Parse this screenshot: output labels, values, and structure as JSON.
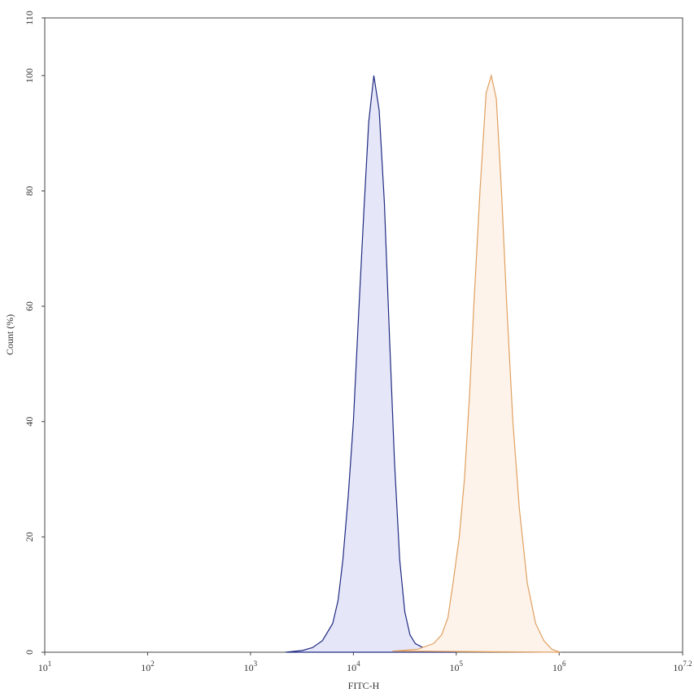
{
  "chart_data": {
    "type": "area",
    "x_label": "FITC-H",
    "y_label": "Count (%)",
    "log_x": true,
    "xlim": [
      10,
      15848931.9
    ],
    "ylim": [
      0,
      110
    ],
    "xticks": [
      {
        "value": 10,
        "label": "10",
        "exponent": "1"
      },
      {
        "value": 100,
        "label": "10",
        "exponent": "2"
      },
      {
        "value": 1000,
        "label": "10",
        "exponent": "3"
      },
      {
        "value": 10000,
        "label": "10",
        "exponent": "4"
      },
      {
        "value": 100000,
        "label": "10",
        "exponent": "5"
      },
      {
        "value": 1000000,
        "label": "10",
        "exponent": "6"
      },
      {
        "value": 15848931.9,
        "label": "10",
        "exponent": "7.2"
      }
    ],
    "yticks": [
      0,
      20,
      40,
      60,
      80,
      100,
      110
    ],
    "series": [
      {
        "color": "#1f2a80",
        "fill": "#e6e6f9",
        "x": [
          2200,
          3200,
          4000,
          5000,
          6300,
          7100,
          7900,
          8900,
          10000,
          11200,
          12600,
          14100,
          15800,
          17800,
          20000,
          22400,
          25100,
          28200,
          31600,
          35500,
          40000,
          50000,
          63000,
          100000
        ],
        "values": [
          0,
          0.3,
          0.8,
          2,
          5,
          9,
          16,
          27,
          40,
          58,
          76,
          92,
          100,
          94,
          78,
          55,
          33,
          16,
          7,
          3,
          1.5,
          0.6,
          0.2,
          0
        ]
      },
      {
        "color": "#e0a060",
        "fill": "#fdf3ea",
        "x": [
          24000,
          42000,
          60000,
          72000,
          83000,
          93000,
          107000,
          120000,
          135000,
          148000,
          170000,
          195000,
          219000,
          245000,
          275000,
          310000,
          355000,
          410000,
          490000,
          590000,
          710000,
          850000,
          1020000
        ],
        "values": [
          0.2,
          0.5,
          1.5,
          3,
          6,
          12,
          20,
          30,
          45,
          60,
          80,
          97,
          100,
          96,
          80,
          60,
          40,
          25,
          12,
          5,
          2,
          0.5,
          0
        ]
      }
    ]
  }
}
